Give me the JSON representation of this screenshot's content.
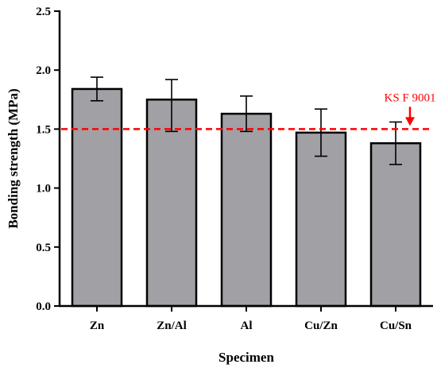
{
  "chart_data": {
    "type": "bar",
    "categories": [
      "Zn",
      "Zn/Al",
      "Al",
      "Cu/Zn",
      "Cu/Sn"
    ],
    "values": [
      1.84,
      1.75,
      1.63,
      1.47,
      1.38
    ],
    "error_low": [
      1.74,
      1.48,
      1.48,
      1.27,
      1.2
    ],
    "error_high": [
      1.94,
      1.92,
      1.78,
      1.67,
      1.56
    ],
    "xlabel": "Specimen",
    "ylabel": "Bonding strength (MPa)",
    "ylim": [
      0,
      2.5
    ],
    "yticks": [
      0.0,
      0.5,
      1.0,
      1.5,
      2.0,
      2.5
    ],
    "ytick_labels": [
      "0.0",
      "0.5",
      "1.0",
      "1.5",
      "2.0",
      "2.5"
    ],
    "grid": false,
    "bar_color": "#a0a0a5",
    "reference_line": {
      "value": 1.5,
      "label": "KS F 9001",
      "color": "#ff0000",
      "arrow_at": "Cu/Sn"
    }
  }
}
